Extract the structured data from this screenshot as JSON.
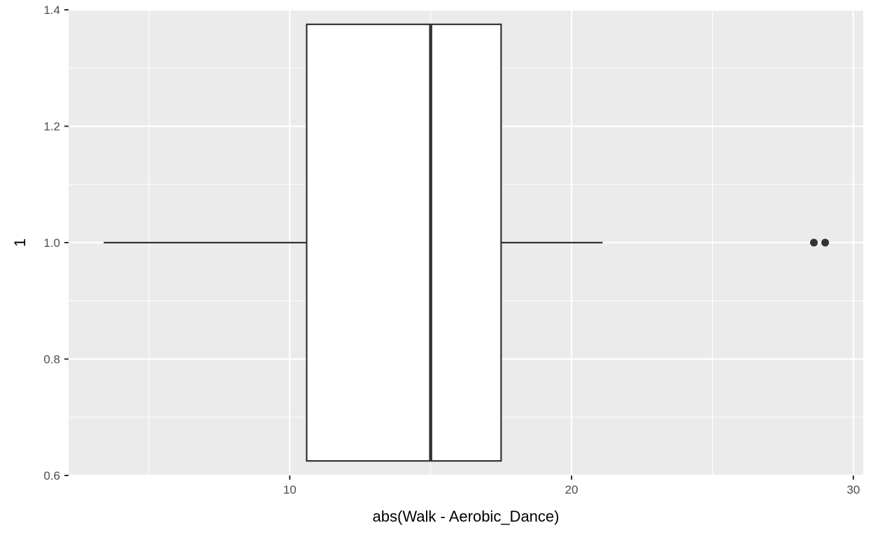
{
  "chart_data": {
    "type": "boxplot",
    "title": "",
    "xlabel": "abs(Walk - Aerobic_Dance)",
    "ylabel": "1",
    "xlim": [
      2.15,
      30.35
    ],
    "ylim": [
      0.6,
      1.4
    ],
    "x_ticks": [
      10,
      20,
      30
    ],
    "y_ticks": [
      0.6,
      0.8,
      1.0,
      1.2,
      1.4
    ],
    "x_tick_labels": [
      "10",
      "20",
      "30"
    ],
    "y_tick_labels": [
      "0.6",
      "0.8",
      "1.0",
      "1.2",
      "1.4"
    ],
    "grid": true,
    "box": {
      "y": 1.0,
      "y_low": 0.625,
      "y_high": 1.375,
      "whisker_low": 3.4,
      "q1": 10.6,
      "median": 15.0,
      "q3": 17.5,
      "whisker_high": 21.1,
      "outliers": [
        28.6,
        29.0
      ]
    },
    "colors": {
      "panel": "#ebebeb",
      "grid": "#ffffff",
      "box_fill": "#ffffff",
      "box_line": "#333333",
      "tick_text": "#4d4d4d",
      "title_text": "#000000"
    }
  }
}
